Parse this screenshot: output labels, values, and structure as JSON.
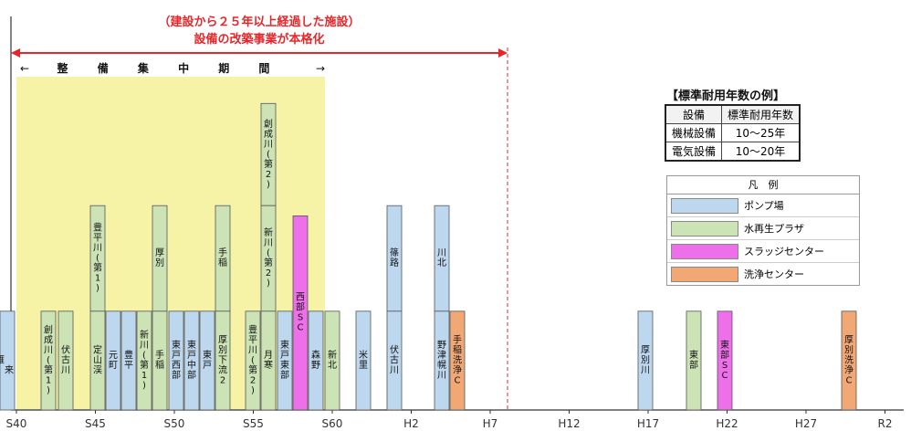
{
  "chart_data": {
    "type": "bar",
    "colors": {
      "pump": "#bcd7ee",
      "treatment": "#cbe3b5",
      "sludge": "#ee6fea",
      "cleaning": "#f2a874",
      "highlight": "#f6f2a6",
      "red": "#e8262a"
    },
    "x_ticks": [
      "S40",
      "S45",
      "S50",
      "S55",
      "S60",
      "H2",
      "H7",
      "H12",
      "H17",
      "H22",
      "H27",
      "R2"
    ],
    "annotation_top": "（建設から２５年以上経過した施設）",
    "annotation_sub": "設備の改築事業が本格化",
    "period_label": "整 備 集 中 期 間",
    "facilities": [
      {
        "id": "s1",
        "type": "treatment",
        "labels": [
          "創成川(第1)"
        ],
        "height": [
          0.29
        ]
      },
      {
        "id": "s2",
        "type": "treatment",
        "labels": [
          "伏古川"
        ],
        "height": [
          0.29
        ]
      },
      {
        "id": "s3",
        "type": "treatment",
        "labels": [
          "豊平川(第1)",
          "定山渓"
        ],
        "height": [
          0.6,
          0.29
        ]
      },
      {
        "id": "s4",
        "type": "pump",
        "labels": [
          "元町"
        ],
        "height": [
          0.29
        ]
      },
      {
        "id": "s5",
        "type": "pump",
        "labels": [
          "豊平"
        ],
        "height": [
          0.29
        ]
      },
      {
        "id": "s6",
        "type": "treatment",
        "labels": [
          "新川(第1)"
        ],
        "height": [
          0.29
        ]
      },
      {
        "id": "s7",
        "type": "treatment",
        "labels": [
          "厚別",
          "手稲"
        ],
        "height": [
          0.6,
          0.29
        ]
      },
      {
        "id": "s8",
        "type": "pump",
        "labels": [
          "東戸西部"
        ],
        "height": [
          0.29
        ]
      },
      {
        "id": "s9",
        "type": "pump",
        "labels": [
          "東戸中部"
        ],
        "height": [
          0.29
        ]
      },
      {
        "id": "s10",
        "type": "pump",
        "labels": [
          "東戸"
        ],
        "height": [
          0.29
        ]
      },
      {
        "id": "s11",
        "type": "treatment",
        "labels": [
          "手稲",
          "厚別下流2"
        ],
        "height": [
          0.6,
          0.29
        ]
      },
      {
        "id": "s12",
        "type": "treatment",
        "labels": [
          "豊平川(第2)"
        ],
        "height": [
          0.29
        ]
      },
      {
        "id": "s13",
        "type": "treatment",
        "labels": [
          "創成川(第2)",
          "新川(第2)",
          "月寒"
        ],
        "height": [
          0.9,
          0.6,
          0.29
        ]
      },
      {
        "id": "s14",
        "type": "pump",
        "labels": [
          "東戸東部"
        ],
        "height": [
          0.29
        ]
      },
      {
        "id": "s15",
        "type": "sludge",
        "labels": [
          "西部SC"
        ],
        "height": [
          0.57
        ]
      },
      {
        "id": "s16",
        "type": "pump",
        "labels": [
          "森野"
        ],
        "height": [
          0.29
        ]
      },
      {
        "id": "s17",
        "type": "treatment",
        "labels": [
          "新北"
        ],
        "height": [
          0.29
        ]
      },
      {
        "id": "s18",
        "type": "pump",
        "labels": [
          "米里"
        ],
        "height": [
          0.29
        ]
      },
      {
        "id": "s19",
        "type": "pump",
        "labels": [
          "篠路",
          "伏古川"
        ],
        "height": [
          0.6,
          0.29
        ]
      },
      {
        "id": "s20",
        "type": "pump",
        "labels": [
          "川北",
          "野津幌川"
        ],
        "height": [
          0.6,
          0.29
        ]
      },
      {
        "id": "s21",
        "type": "cleaning",
        "labels": [
          "手稲洗浄C"
        ],
        "height": [
          0.29
        ]
      },
      {
        "id": "s22",
        "type": "pump",
        "labels": [
          "厚別川"
        ],
        "height": [
          0.29
        ]
      },
      {
        "id": "s23",
        "type": "treatment",
        "labels": [
          "東部"
        ],
        "height": [
          0.29
        ]
      },
      {
        "id": "s24",
        "type": "sludge",
        "labels": [
          "東部SC"
        ],
        "height": [
          0.29
        ]
      },
      {
        "id": "s25",
        "type": "cleaning",
        "labels": [
          "厚別洗浄C"
        ],
        "height": [
          0.29
        ]
      },
      {
        "id": "s26",
        "type": "pump",
        "labels": [
          "東雁来"
        ],
        "height": [
          0.29
        ]
      }
    ]
  },
  "reference_table": {
    "title": "【標準耐用年数の例】",
    "headers": [
      "設備",
      "標準耐用年数"
    ],
    "rows": [
      [
        "機械設備",
        "10～25年"
      ],
      [
        "電気設備",
        "10～20年"
      ]
    ]
  },
  "legend": {
    "title": "凡　例",
    "items": [
      {
        "label": "ポンプ場",
        "color": "#bcd7ee"
      },
      {
        "label": "水再生プラザ",
        "color": "#cbe3b5"
      },
      {
        "label": "スラッジセンター",
        "color": "#ee6fea"
      },
      {
        "label": "洗浄センター",
        "color": "#f2a874"
      }
    ]
  }
}
